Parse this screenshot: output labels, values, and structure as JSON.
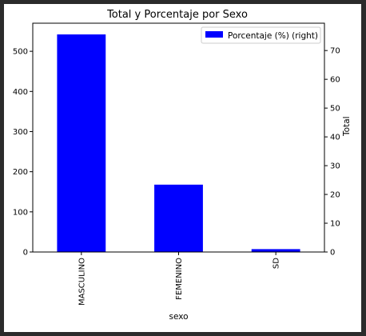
{
  "chart_data": {
    "type": "bar",
    "title": "Total y Porcentaje por Sexo",
    "xlabel": "sexo",
    "ylabel_left": "",
    "ylabel_right": "Total",
    "categories": [
      "MASCULINO",
      "FEMENINO",
      "SD"
    ],
    "series": [
      {
        "name": "Porcentaje (%) (right)",
        "axis": "right",
        "values": [
          75.6,
          23.4,
          1.0
        ],
        "color": "#0000ff"
      }
    ],
    "ylim_left": [
      0,
      570
    ],
    "yticks_left": [
      0,
      100,
      200,
      300,
      400,
      500
    ],
    "ylim_right": [
      0,
      79.5
    ],
    "yticks_right": [
      0,
      10,
      20,
      30,
      40,
      50,
      60,
      70
    ],
    "legend": {
      "placement": "top-right",
      "entries": [
        "Porcentaje (%) (right)"
      ]
    },
    "grid": false
  }
}
